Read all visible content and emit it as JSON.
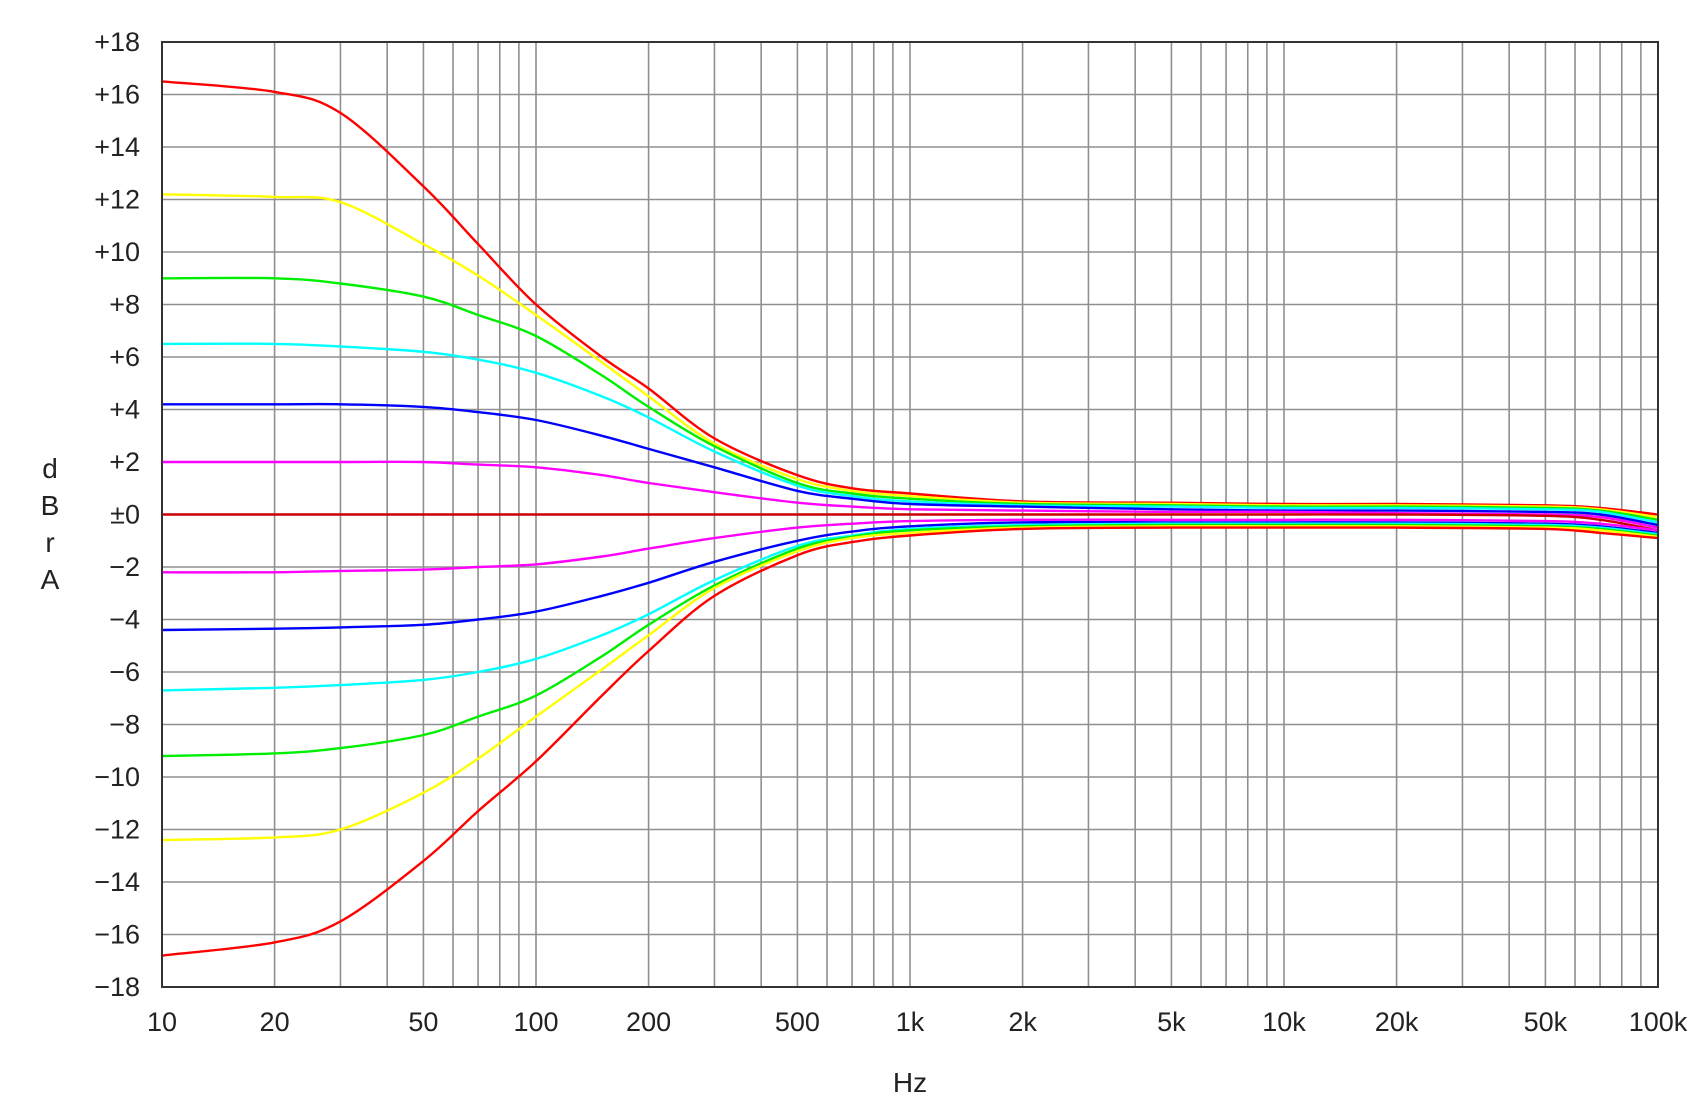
{
  "chart_data": {
    "type": "line",
    "title": "",
    "xlabel": "Hz",
    "ylabel": [
      "d",
      "B",
      "r",
      "A"
    ],
    "x_scale": "log",
    "xlim": [
      10,
      100000
    ],
    "ylim": [
      -18,
      18
    ],
    "grid": true,
    "x_tick_values": [
      10,
      20,
      50,
      100,
      200,
      500,
      1000,
      2000,
      5000,
      10000,
      20000,
      50000,
      100000
    ],
    "x_tick_labels": [
      "10",
      "20",
      "50",
      "100",
      "200",
      "500",
      "1k",
      "2k",
      "5k",
      "10k",
      "20k",
      "50k",
      "100k"
    ],
    "y_tick_values": [
      18,
      16,
      14,
      12,
      10,
      8,
      6,
      4,
      2,
      0,
      -2,
      -4,
      -6,
      -8,
      -10,
      -12,
      -14,
      -16,
      -18
    ],
    "y_tick_labels": [
      "+18",
      "+16",
      "+14",
      "+12",
      "+10",
      "+8",
      "+6",
      "+4",
      "+2",
      "±0",
      "−2",
      "−4",
      "−6",
      "−8",
      "−10",
      "−12",
      "−14",
      "−16",
      "−18"
    ],
    "x": [
      10,
      20,
      30,
      50,
      70,
      100,
      150,
      200,
      300,
      500,
      700,
      1000,
      2000,
      5000,
      10000,
      20000,
      50000,
      70000,
      100000
    ],
    "series": [
      {
        "color": "#ff0000",
        "values": [
          16.5,
          16.1,
          15.3,
          12.5,
          10.3,
          8.0,
          6.0,
          4.8,
          2.9,
          1.5,
          1.0,
          0.8,
          0.5,
          0.45,
          0.4,
          0.4,
          0.35,
          0.25,
          0.0
        ]
      },
      {
        "color": "#ffff00",
        "values": [
          12.2,
          12.1,
          11.9,
          10.3,
          9.1,
          7.6,
          5.8,
          4.5,
          2.7,
          1.35,
          0.9,
          0.7,
          0.45,
          0.4,
          0.35,
          0.35,
          0.3,
          0.2,
          -0.1
        ]
      },
      {
        "color": "#00ee00",
        "values": [
          9.0,
          9.0,
          8.8,
          8.3,
          7.6,
          6.8,
          5.3,
          4.1,
          2.6,
          1.2,
          0.8,
          0.6,
          0.4,
          0.35,
          0.3,
          0.3,
          0.25,
          0.15,
          -0.2
        ]
      },
      {
        "color": "#00ffff",
        "values": [
          6.5,
          6.5,
          6.4,
          6.2,
          5.9,
          5.4,
          4.5,
          3.7,
          2.4,
          1.1,
          0.7,
          0.5,
          0.35,
          0.3,
          0.25,
          0.25,
          0.2,
          0.1,
          -0.3
        ]
      },
      {
        "color": "#0000ff",
        "values": [
          4.2,
          4.2,
          4.2,
          4.1,
          3.9,
          3.6,
          3.0,
          2.5,
          1.8,
          0.9,
          0.6,
          0.4,
          0.3,
          0.2,
          0.15,
          0.15,
          0.1,
          0.0,
          -0.4
        ]
      },
      {
        "color": "#ff00ff",
        "values": [
          2.0,
          2.0,
          2.0,
          2.0,
          1.9,
          1.8,
          1.5,
          1.2,
          0.85,
          0.45,
          0.3,
          0.2,
          0.15,
          0.1,
          0.1,
          0.05,
          0.0,
          -0.1,
          -0.5
        ]
      },
      {
        "color": "#cc0000",
        "values": [
          0,
          0,
          0,
          0,
          0,
          0,
          0,
          0,
          0,
          0,
          0,
          0,
          0,
          0,
          0,
          0,
          -0.05,
          -0.2,
          -0.6
        ]
      },
      {
        "color": "#ff00ff",
        "values": [
          -2.2,
          -2.2,
          -2.15,
          -2.1,
          -2.0,
          -1.9,
          -1.6,
          -1.3,
          -0.9,
          -0.5,
          -0.35,
          -0.25,
          -0.2,
          -0.2,
          -0.2,
          -0.2,
          -0.25,
          -0.35,
          -0.6
        ]
      },
      {
        "color": "#0000ff",
        "values": [
          -4.4,
          -4.35,
          -4.3,
          -4.2,
          -4.0,
          -3.7,
          -3.1,
          -2.6,
          -1.8,
          -1.0,
          -0.65,
          -0.45,
          -0.3,
          -0.3,
          -0.3,
          -0.3,
          -0.35,
          -0.45,
          -0.7
        ]
      },
      {
        "color": "#00ffff",
        "values": [
          -6.7,
          -6.6,
          -6.5,
          -6.3,
          -6.0,
          -5.5,
          -4.6,
          -3.8,
          -2.5,
          -1.2,
          -0.8,
          -0.55,
          -0.4,
          -0.35,
          -0.35,
          -0.35,
          -0.4,
          -0.5,
          -0.75
        ]
      },
      {
        "color": "#00ee00",
        "values": [
          -9.2,
          -9.1,
          -8.9,
          -8.4,
          -7.7,
          -6.9,
          -5.4,
          -4.2,
          -2.7,
          -1.3,
          -0.85,
          -0.6,
          -0.45,
          -0.4,
          -0.4,
          -0.4,
          -0.45,
          -0.55,
          -0.8
        ]
      },
      {
        "color": "#ffff00",
        "values": [
          -12.4,
          -12.3,
          -12.0,
          -10.6,
          -9.3,
          -7.7,
          -5.9,
          -4.6,
          -2.8,
          -1.4,
          -0.9,
          -0.7,
          -0.5,
          -0.45,
          -0.45,
          -0.45,
          -0.5,
          -0.6,
          -0.85
        ]
      },
      {
        "color": "#ff0000",
        "values": [
          -16.8,
          -16.3,
          -15.5,
          -13.2,
          -11.3,
          -9.4,
          -6.9,
          -5.2,
          -3.1,
          -1.55,
          -1.05,
          -0.8,
          -0.55,
          -0.5,
          -0.5,
          -0.5,
          -0.55,
          -0.7,
          -0.9
        ]
      }
    ]
  }
}
